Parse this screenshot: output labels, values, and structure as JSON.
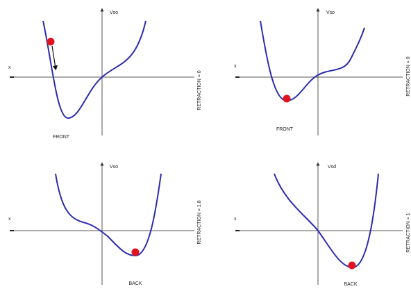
{
  "panels": [
    {
      "axis_label": "Vso",
      "x_label": "x",
      "caption": "FRONT",
      "side_label": "RETRACTION = 0"
    },
    {
      "axis_label": "Vso",
      "x_label": "x",
      "caption": "FRONT",
      "side_label": "RETRACTION = 0"
    },
    {
      "axis_label": "Vso",
      "x_label": "x",
      "caption": "BACK",
      "side_label": "RETRACTION = 1.8"
    },
    {
      "axis_label": "Vsd",
      "x_label": "x",
      "caption": "BACK",
      "side_label": "RETRACTION = 1"
    }
  ]
}
